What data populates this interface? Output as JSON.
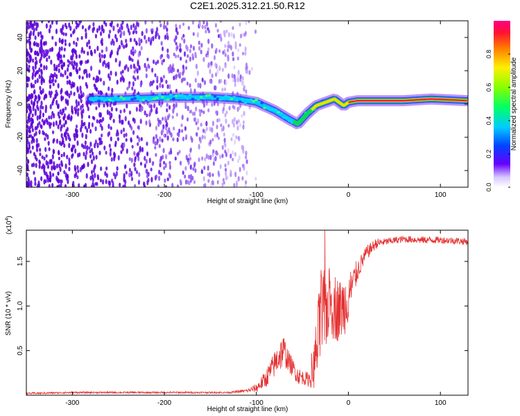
{
  "title": "C2E1.2025.312.21.50.R12",
  "colors": {
    "snr_line": "#e53030",
    "ridge_core": "#ff1a4a",
    "ridge_halo": "#00dd55"
  },
  "chart_data": [
    {
      "type": "heatmap",
      "xlabel": "Height of straight line (km)",
      "ylabel": "Frequency (Hz)",
      "xlim": [
        -350,
        130
      ],
      "ylim": [
        -50,
        50
      ],
      "xticks": [
        "-300",
        "-200",
        "-100",
        "0",
        "100"
      ],
      "xtick_values": [
        -300,
        -200,
        -100,
        0,
        100
      ],
      "yticks": [
        "-40",
        "-20",
        "0",
        "20",
        "40"
      ],
      "ytick_values": [
        -40,
        -20,
        0,
        20,
        40
      ],
      "ridge": {
        "x": [
          -280,
          -250,
          -200,
          -150,
          -120,
          -100,
          -80,
          -65,
          -55,
          -45,
          -35,
          -25,
          -15,
          -10,
          -5,
          0,
          10,
          30,
          60,
          90,
          130
        ],
        "y": [
          3,
          3,
          4,
          4,
          3,
          1,
          -4,
          -9,
          -12,
          -6,
          -1,
          1,
          3,
          1,
          -1,
          1,
          2,
          2,
          2,
          3,
          2
        ]
      },
      "colorbar": {
        "label": "Normalized spectral amplitude",
        "range": [
          0,
          1
        ],
        "ticks": [
          "0.0",
          "0.2",
          "0.4",
          "0.6",
          "0.8"
        ],
        "tick_values": [
          0.0,
          0.2,
          0.4,
          0.6,
          0.8
        ]
      }
    },
    {
      "type": "line",
      "xlabel": "Height of straight line (km)",
      "ylabel": "SNR (10 * v/v)",
      "multiplier": "(x10",
      "multiplier_exp": "4",
      "multiplier_close": ")",
      "xlim": [
        -350,
        130
      ],
      "ylim": [
        0,
        1.85
      ],
      "xticks": [
        "-300",
        "-200",
        "-100",
        "0",
        "100"
      ],
      "xtick_values": [
        -300,
        -200,
        -100,
        0,
        100
      ],
      "yticks": [
        "0.5",
        "1.0",
        "1.5"
      ],
      "ytick_values": [
        0.5,
        1.0,
        1.5
      ],
      "series": [
        {
          "name": "SNR",
          "x": [
            -350,
            -300,
            -200,
            -130,
            -110,
            -100,
            -90,
            -80,
            -75,
            -70,
            -65,
            -60,
            -55,
            -50,
            -45,
            -40,
            -35,
            -30,
            -25,
            -20,
            -15,
            -10,
            -5,
            0,
            10,
            20,
            30,
            40,
            60,
            80,
            100,
            120,
            130
          ],
          "y": [
            0.02,
            0.03,
            0.03,
            0.03,
            0.05,
            0.08,
            0.18,
            0.35,
            0.45,
            0.5,
            0.38,
            0.3,
            0.22,
            0.2,
            0.18,
            0.2,
            0.45,
            0.85,
            0.95,
            1.05,
            1.0,
            0.95,
            1.0,
            1.1,
            1.4,
            1.6,
            1.7,
            1.72,
            1.75,
            1.74,
            1.74,
            1.73,
            1.72
          ],
          "noise": [
            0.01,
            0.01,
            0.01,
            0.01,
            0.02,
            0.05,
            0.1,
            0.15,
            0.2,
            0.18,
            0.12,
            0.1,
            0.1,
            0.08,
            0.08,
            0.12,
            0.4,
            0.55,
            0.45,
            0.4,
            0.4,
            0.35,
            0.35,
            0.3,
            0.12,
            0.08,
            0.06,
            0.04,
            0.04,
            0.04,
            0.04,
            0.04,
            0.04
          ]
        }
      ]
    }
  ]
}
